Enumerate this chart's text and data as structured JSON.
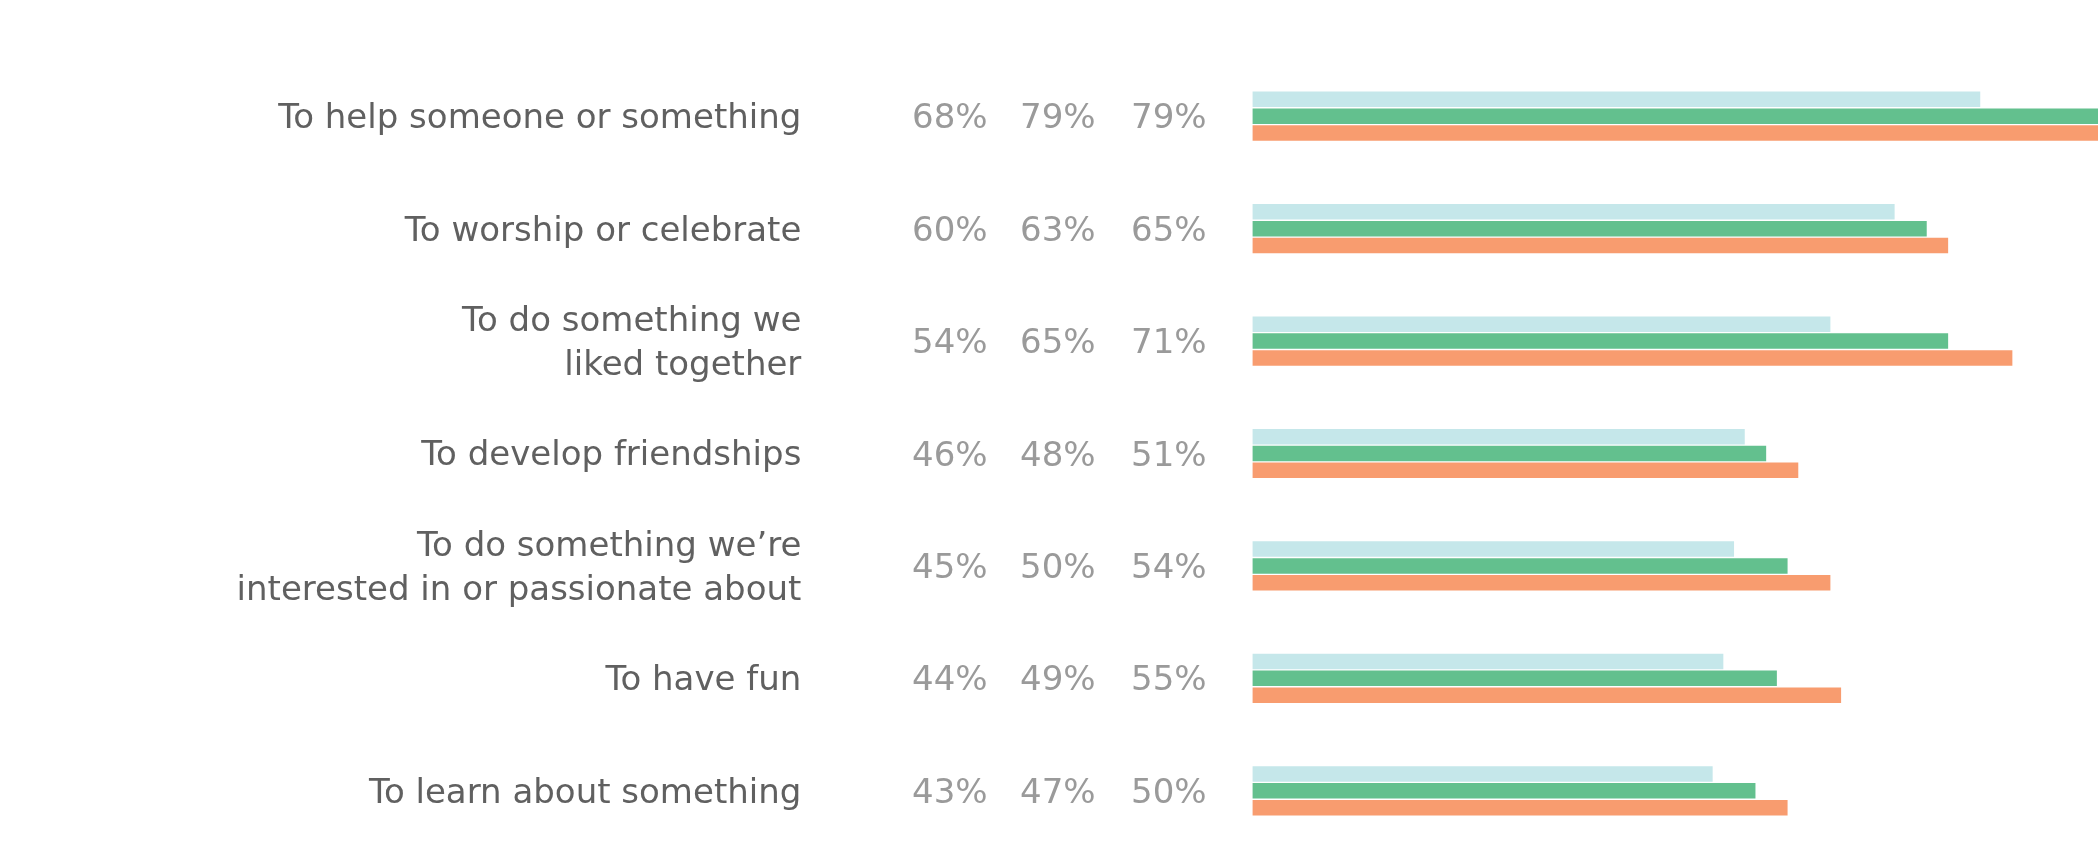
{
  "chart_data": {
    "type": "bar",
    "orientation": "horizontal",
    "categories": [
      "To help someone or something",
      "To worship or celebrate",
      "To do something we\nliked together",
      "To develop friendships",
      "To do something we’re\ninterested in or passionate about",
      "To have fun",
      "To learn about something"
    ],
    "series": [
      {
        "color": "#c5e7ea",
        "values": [
          68,
          60,
          54,
          46,
          45,
          44,
          43
        ],
        "value_labels": [
          "68%",
          "60%",
          "54%",
          "46%",
          "45%",
          "44%",
          "43%"
        ]
      },
      {
        "color": "#63c08e",
        "values": [
          79,
          63,
          65,
          48,
          50,
          49,
          47
        ],
        "value_labels": [
          "79%",
          "63%",
          "65%",
          "48%",
          "50%",
          "49%",
          "47%"
        ]
      },
      {
        "color": "#f89c6f",
        "values": [
          79,
          65,
          71,
          51,
          54,
          55,
          50
        ],
        "value_labels": [
          "79%",
          "65%",
          "71%",
          "51%",
          "54%",
          "55%",
          "50%"
        ]
      }
    ]
  }
}
